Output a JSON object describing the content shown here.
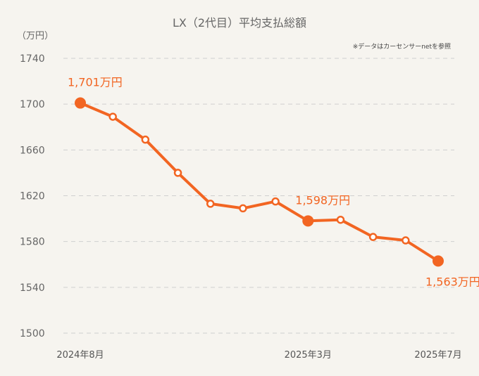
{
  "chart_data": {
    "type": "line",
    "title": "LX（2代目）平均支払総額",
    "unit_label": "（万円）",
    "note": "※データはカーセンサーnetを参照",
    "y_ticks": [
      "1740",
      "1700",
      "1660",
      "1620",
      "1580",
      "1540",
      "1500"
    ],
    "ylim": [
      1500,
      1740
    ],
    "x_tick_labels": [
      {
        "index": 0,
        "label": "2024年8月"
      },
      {
        "index": 7,
        "label": "2025年3月"
      },
      {
        "index": 11,
        "label": "2025年7月"
      }
    ],
    "series": [
      {
        "values": [
          1701,
          1689,
          1669,
          1640,
          1613,
          1609,
          1615,
          1598,
          1599,
          1584,
          1581,
          1563
        ],
        "color": "#f26522"
      }
    ],
    "highlights": [
      {
        "index": 0,
        "label": "1,701万円",
        "position": "above"
      },
      {
        "index": 7,
        "label": "1,598万円",
        "position": "above"
      },
      {
        "index": 11,
        "label": "1,563万円",
        "position": "below"
      }
    ],
    "grid": true
  }
}
